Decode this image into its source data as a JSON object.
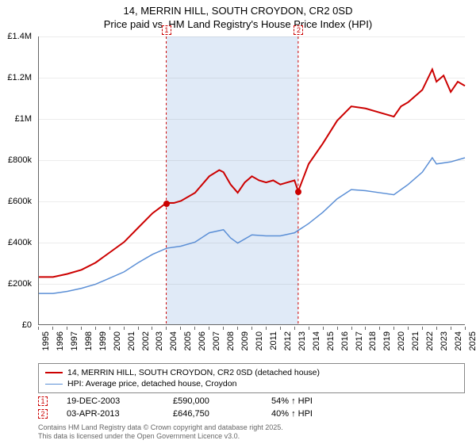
{
  "title_line1": "14, MERRIN HILL, SOUTH CROYDON, CR2 0SD",
  "title_line2": "Price paid vs. HM Land Registry's House Price Index (HPI)",
  "chart": {
    "type": "line",
    "x_start_year": 1995,
    "x_end_year": 2025,
    "x_ticks": [
      "1995",
      "1996",
      "1997",
      "1998",
      "1999",
      "2000",
      "2001",
      "2002",
      "2003",
      "2004",
      "2005",
      "2006",
      "2007",
      "2008",
      "2009",
      "2010",
      "2011",
      "2012",
      "2013",
      "2014",
      "2015",
      "2016",
      "2017",
      "2018",
      "2019",
      "2020",
      "2021",
      "2022",
      "2023",
      "2024",
      "2025"
    ],
    "y_min": 0,
    "y_max": 1400000,
    "y_ticks": [
      {
        "v": 0,
        "label": "£0"
      },
      {
        "v": 200000,
        "label": "£200k"
      },
      {
        "v": 400000,
        "label": "£400k"
      },
      {
        "v": 600000,
        "label": "£600k"
      },
      {
        "v": 800000,
        "label": "£800k"
      },
      {
        "v": 1000000,
        "label": "£1M"
      },
      {
        "v": 1200000,
        "label": "£1.2M"
      },
      {
        "v": 1400000,
        "label": "£1.4M"
      }
    ],
    "background_color": "#ffffff",
    "grid_color": "#e8e8e8",
    "shaded_band": {
      "from_year": 2003.97,
      "to_year": 2013.26,
      "color": "#c7d9f0"
    },
    "series": [
      {
        "name": "price_paid",
        "label": "14, MERRIN HILL, SOUTH CROYDON, CR2 0SD (detached house)",
        "color": "#cc0000",
        "line_width": 2,
        "points": [
          [
            1995,
            230000
          ],
          [
            1996,
            230000
          ],
          [
            1997,
            245000
          ],
          [
            1998,
            265000
          ],
          [
            1999,
            300000
          ],
          [
            2000,
            350000
          ],
          [
            2001,
            400000
          ],
          [
            2002,
            470000
          ],
          [
            2003,
            540000
          ],
          [
            2003.97,
            590000
          ],
          [
            2004.5,
            590000
          ],
          [
            2005,
            600000
          ],
          [
            2006,
            640000
          ],
          [
            2007,
            720000
          ],
          [
            2007.7,
            750000
          ],
          [
            2008,
            740000
          ],
          [
            2008.5,
            680000
          ],
          [
            2009,
            640000
          ],
          [
            2009.5,
            690000
          ],
          [
            2010,
            720000
          ],
          [
            2010.5,
            700000
          ],
          [
            2011,
            690000
          ],
          [
            2011.5,
            700000
          ],
          [
            2012,
            680000
          ],
          [
            2012.5,
            690000
          ],
          [
            2013,
            700000
          ],
          [
            2013.26,
            646750
          ],
          [
            2014,
            780000
          ],
          [
            2015,
            880000
          ],
          [
            2016,
            990000
          ],
          [
            2017,
            1060000
          ],
          [
            2018,
            1050000
          ],
          [
            2019,
            1030000
          ],
          [
            2020,
            1010000
          ],
          [
            2020.5,
            1060000
          ],
          [
            2021,
            1080000
          ],
          [
            2022,
            1140000
          ],
          [
            2022.7,
            1240000
          ],
          [
            2023,
            1180000
          ],
          [
            2023.5,
            1210000
          ],
          [
            2024,
            1130000
          ],
          [
            2024.5,
            1180000
          ],
          [
            2025,
            1160000
          ]
        ]
      },
      {
        "name": "hpi",
        "label": "HPI: Average price, detached house, Croydon",
        "color": "#5b8fd6",
        "line_width": 1.5,
        "points": [
          [
            1995,
            150000
          ],
          [
            1996,
            150000
          ],
          [
            1997,
            160000
          ],
          [
            1998,
            175000
          ],
          [
            1999,
            195000
          ],
          [
            2000,
            225000
          ],
          [
            2001,
            255000
          ],
          [
            2002,
            300000
          ],
          [
            2003,
            340000
          ],
          [
            2004,
            370000
          ],
          [
            2005,
            380000
          ],
          [
            2006,
            400000
          ],
          [
            2007,
            445000
          ],
          [
            2008,
            460000
          ],
          [
            2008.5,
            420000
          ],
          [
            2009,
            395000
          ],
          [
            2010,
            435000
          ],
          [
            2011,
            430000
          ],
          [
            2012,
            430000
          ],
          [
            2013,
            445000
          ],
          [
            2014,
            490000
          ],
          [
            2015,
            545000
          ],
          [
            2016,
            610000
          ],
          [
            2017,
            655000
          ],
          [
            2018,
            650000
          ],
          [
            2019,
            640000
          ],
          [
            2020,
            630000
          ],
          [
            2021,
            680000
          ],
          [
            2022,
            740000
          ],
          [
            2022.7,
            810000
          ],
          [
            2023,
            780000
          ],
          [
            2024,
            790000
          ],
          [
            2025,
            810000
          ]
        ]
      }
    ],
    "markers": [
      {
        "id": "1",
        "year": 2003.97,
        "top": true
      },
      {
        "id": "2",
        "year": 2013.26,
        "top": true
      }
    ],
    "sale_points": [
      {
        "year": 2003.97,
        "value": 590000
      },
      {
        "year": 2013.26,
        "value": 646750
      }
    ]
  },
  "legend": {
    "items": [
      {
        "color": "#cc0000",
        "width": 2,
        "text": "14, MERRIN HILL, SOUTH CROYDON, CR2 0SD (detached house)"
      },
      {
        "color": "#5b8fd6",
        "width": 1.5,
        "text": "HPI: Average price, detached house, Croydon"
      }
    ]
  },
  "sales": [
    {
      "marker": "1",
      "date": "19-DEC-2003",
      "price": "£590,000",
      "delta": "54% ↑ HPI"
    },
    {
      "marker": "2",
      "date": "03-APR-2013",
      "price": "£646,750",
      "delta": "40% ↑ HPI"
    }
  ],
  "footer_line1": "Contains HM Land Registry data © Crown copyright and database right 2025.",
  "footer_line2": "This data is licensed under the Open Government Licence v3.0."
}
